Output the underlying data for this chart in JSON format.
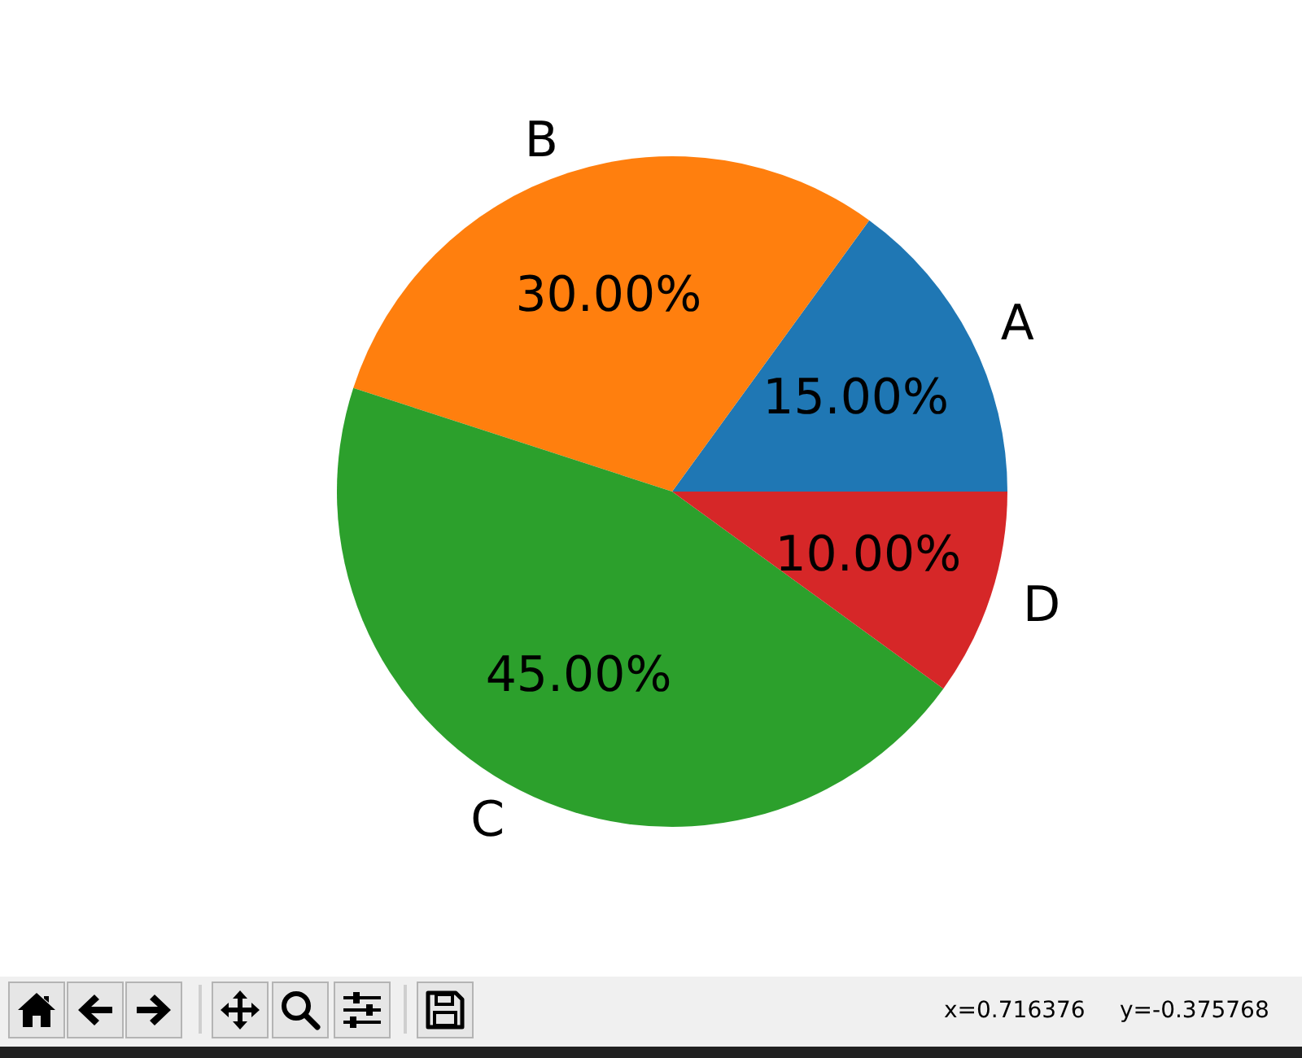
{
  "chart_data": {
    "type": "pie",
    "categories": [
      "A",
      "B",
      "C",
      "D"
    ],
    "values": [
      15,
      30,
      45,
      10
    ],
    "colors": [
      "#1f77b4",
      "#ff7f0e",
      "#2ca02c",
      "#d62728"
    ],
    "value_labels": [
      "15.00%",
      "30.00%",
      "45.00%",
      "10.00%"
    ],
    "annotations": [
      "x=0.716376",
      "y=-0.375768"
    ]
  }
}
